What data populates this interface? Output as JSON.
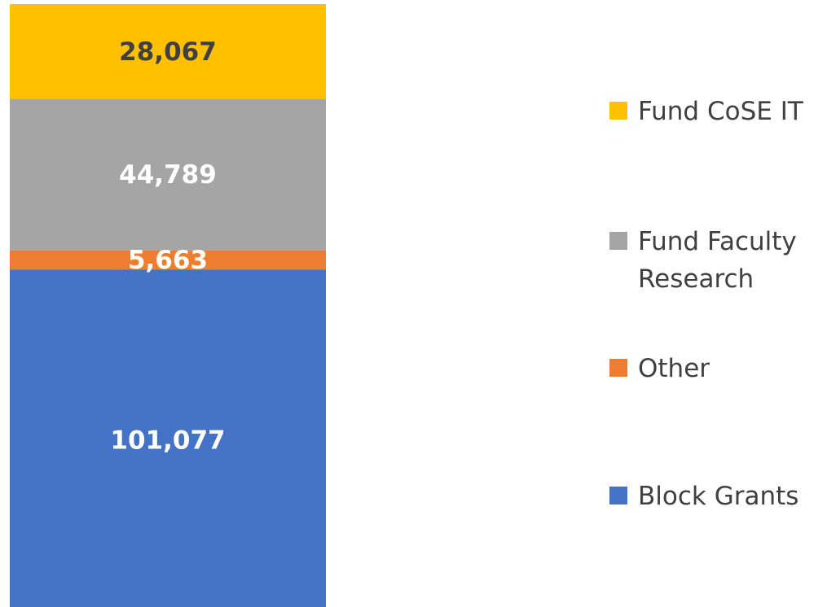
{
  "chart_data": {
    "type": "bar",
    "stacked": true,
    "series": [
      {
        "name": "Block Grants",
        "color": "#4472c4",
        "values": [
          101077
        ],
        "value_labels": [
          "101,077"
        ],
        "label_color": "#ffffff"
      },
      {
        "name": "Other",
        "color": "#ed7d31",
        "values": [
          5663
        ],
        "value_labels": [
          "5,663"
        ],
        "label_color": "#ffffff"
      },
      {
        "name": "Fund Faculty Research",
        "color": "#a5a5a5",
        "values": [
          44789
        ],
        "value_labels": [
          "44,789"
        ],
        "label_color": "#ffffff"
      },
      {
        "name": "Fund CoSE IT",
        "color": "#ffc000",
        "values": [
          28067
        ],
        "value_labels": [
          "28,067"
        ],
        "label_color": "#404040"
      }
    ],
    "legend": "right"
  }
}
